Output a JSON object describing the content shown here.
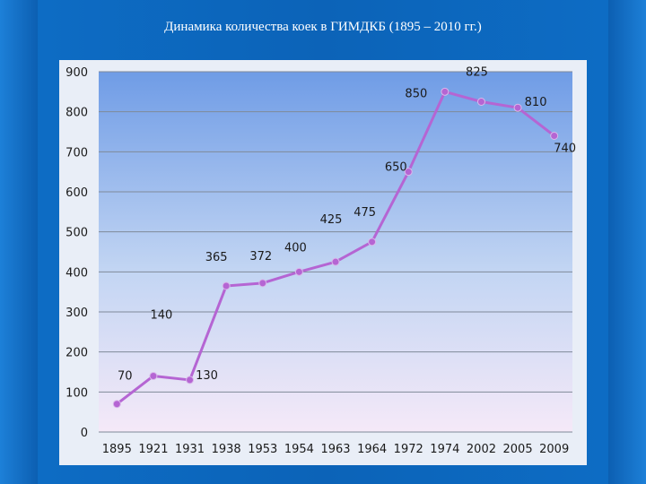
{
  "slide": {
    "title": "Динамика количества коек в ГИМДКБ (1895 – 2010 гг.)"
  },
  "chart_data": {
    "type": "line",
    "title": "Динамика количества коек в ГИМДКБ (1895 – 2010 гг.)",
    "categories": [
      "1895",
      "1921",
      "1931",
      "1938",
      "1953",
      "1954",
      "1963",
      "1964",
      "1972",
      "1974",
      "2002",
      "2005",
      "2009"
    ],
    "series": [
      {
        "values": [
          70,
          140,
          130,
          365,
          372,
          400,
          425,
          475,
          650,
          850,
          825,
          810,
          740
        ]
      }
    ],
    "ylim": [
      0,
      900
    ],
    "yticks": [
      0,
      100,
      200,
      300,
      400,
      500,
      600,
      700,
      800,
      900
    ],
    "xlabel": "",
    "ylabel": "",
    "grid": true,
    "legend": "none",
    "colors": {
      "line": "#b565d3",
      "marker": "#b565d3",
      "grid": "#7f8a99"
    }
  }
}
